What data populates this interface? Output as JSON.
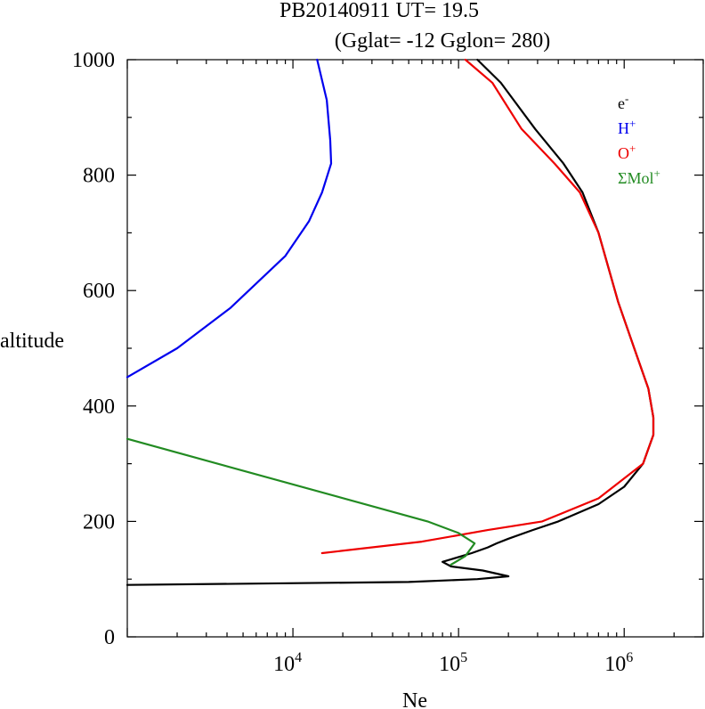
{
  "chart_data": {
    "type": "line",
    "title": "PB20140911   UT=  19.5",
    "subtitle": "(Gglat= -12   Gglon=  280)",
    "xlabel": "Ne",
    "ylabel": "altitude",
    "xscale": "log",
    "xlim": [
      1000,
      3000000
    ],
    "ylim": [
      0,
      1000
    ],
    "x_tick_labels": [
      {
        "base": "10",
        "exp": "4",
        "value": 10000
      },
      {
        "base": "10",
        "exp": "5",
        "value": 100000
      },
      {
        "base": "10",
        "exp": "6",
        "value": 1000000
      }
    ],
    "y_ticks": [
      0,
      200,
      400,
      600,
      800,
      1000
    ],
    "legend": {
      "position": "top-right",
      "entries": [
        {
          "label": "e",
          "sup": "-",
          "color": "#000000"
        },
        {
          "label": "H",
          "sup": "+",
          "color": "#0000ee"
        },
        {
          "label": "O",
          "sup": "+",
          "color": "#ee0000"
        },
        {
          "label": "ΣMol",
          "sup": "+",
          "color": "#228b22"
        }
      ]
    },
    "series": [
      {
        "name": "e-",
        "color": "#000000",
        "points": [
          [
            1000,
            90
          ],
          [
            50000,
            95
          ],
          [
            130000,
            100
          ],
          [
            200000,
            105
          ],
          [
            140000,
            115
          ],
          [
            90000,
            122
          ],
          [
            80000,
            130
          ],
          [
            120000,
            145
          ],
          [
            150000,
            155
          ],
          [
            170000,
            162
          ],
          [
            200000,
            170
          ],
          [
            280000,
            185
          ],
          [
            400000,
            200
          ],
          [
            700000,
            230
          ],
          [
            1000000,
            260
          ],
          [
            1300000,
            300
          ],
          [
            1500000,
            350
          ],
          [
            1500000,
            380
          ],
          [
            1400000,
            430
          ],
          [
            1150000,
            500
          ],
          [
            920000,
            580
          ],
          [
            700000,
            700
          ],
          [
            560000,
            770
          ],
          [
            430000,
            820
          ],
          [
            290000,
            880
          ],
          [
            180000,
            960
          ],
          [
            130000,
            1000
          ]
        ]
      },
      {
        "name": "H+",
        "color": "#0000ee",
        "points": [
          [
            1000,
            450
          ],
          [
            2000,
            500
          ],
          [
            4200,
            570
          ],
          [
            9000,
            660
          ],
          [
            12500,
            720
          ],
          [
            15000,
            770
          ],
          [
            17000,
            820
          ],
          [
            16800,
            860
          ],
          [
            16000,
            930
          ],
          [
            14000,
            1000
          ]
        ]
      },
      {
        "name": "O+",
        "color": "#ee0000",
        "points": [
          [
            15000,
            145
          ],
          [
            60000,
            165
          ],
          [
            150000,
            185
          ],
          [
            320000,
            200
          ],
          [
            700000,
            240
          ],
          [
            1300000,
            300
          ],
          [
            1500000,
            350
          ],
          [
            1500000,
            380
          ],
          [
            1400000,
            430
          ],
          [
            1150000,
            500
          ],
          [
            920000,
            580
          ],
          [
            700000,
            700
          ],
          [
            540000,
            770
          ],
          [
            380000,
            820
          ],
          [
            240000,
            880
          ],
          [
            160000,
            960
          ],
          [
            110000,
            1000
          ]
        ]
      },
      {
        "name": "ΣMol+",
        "color": "#228b22",
        "points": [
          [
            1000,
            343
          ],
          [
            65000,
            200
          ],
          [
            100000,
            180
          ],
          [
            125000,
            162
          ],
          [
            110000,
            140
          ],
          [
            90000,
            125
          ]
        ]
      }
    ]
  }
}
